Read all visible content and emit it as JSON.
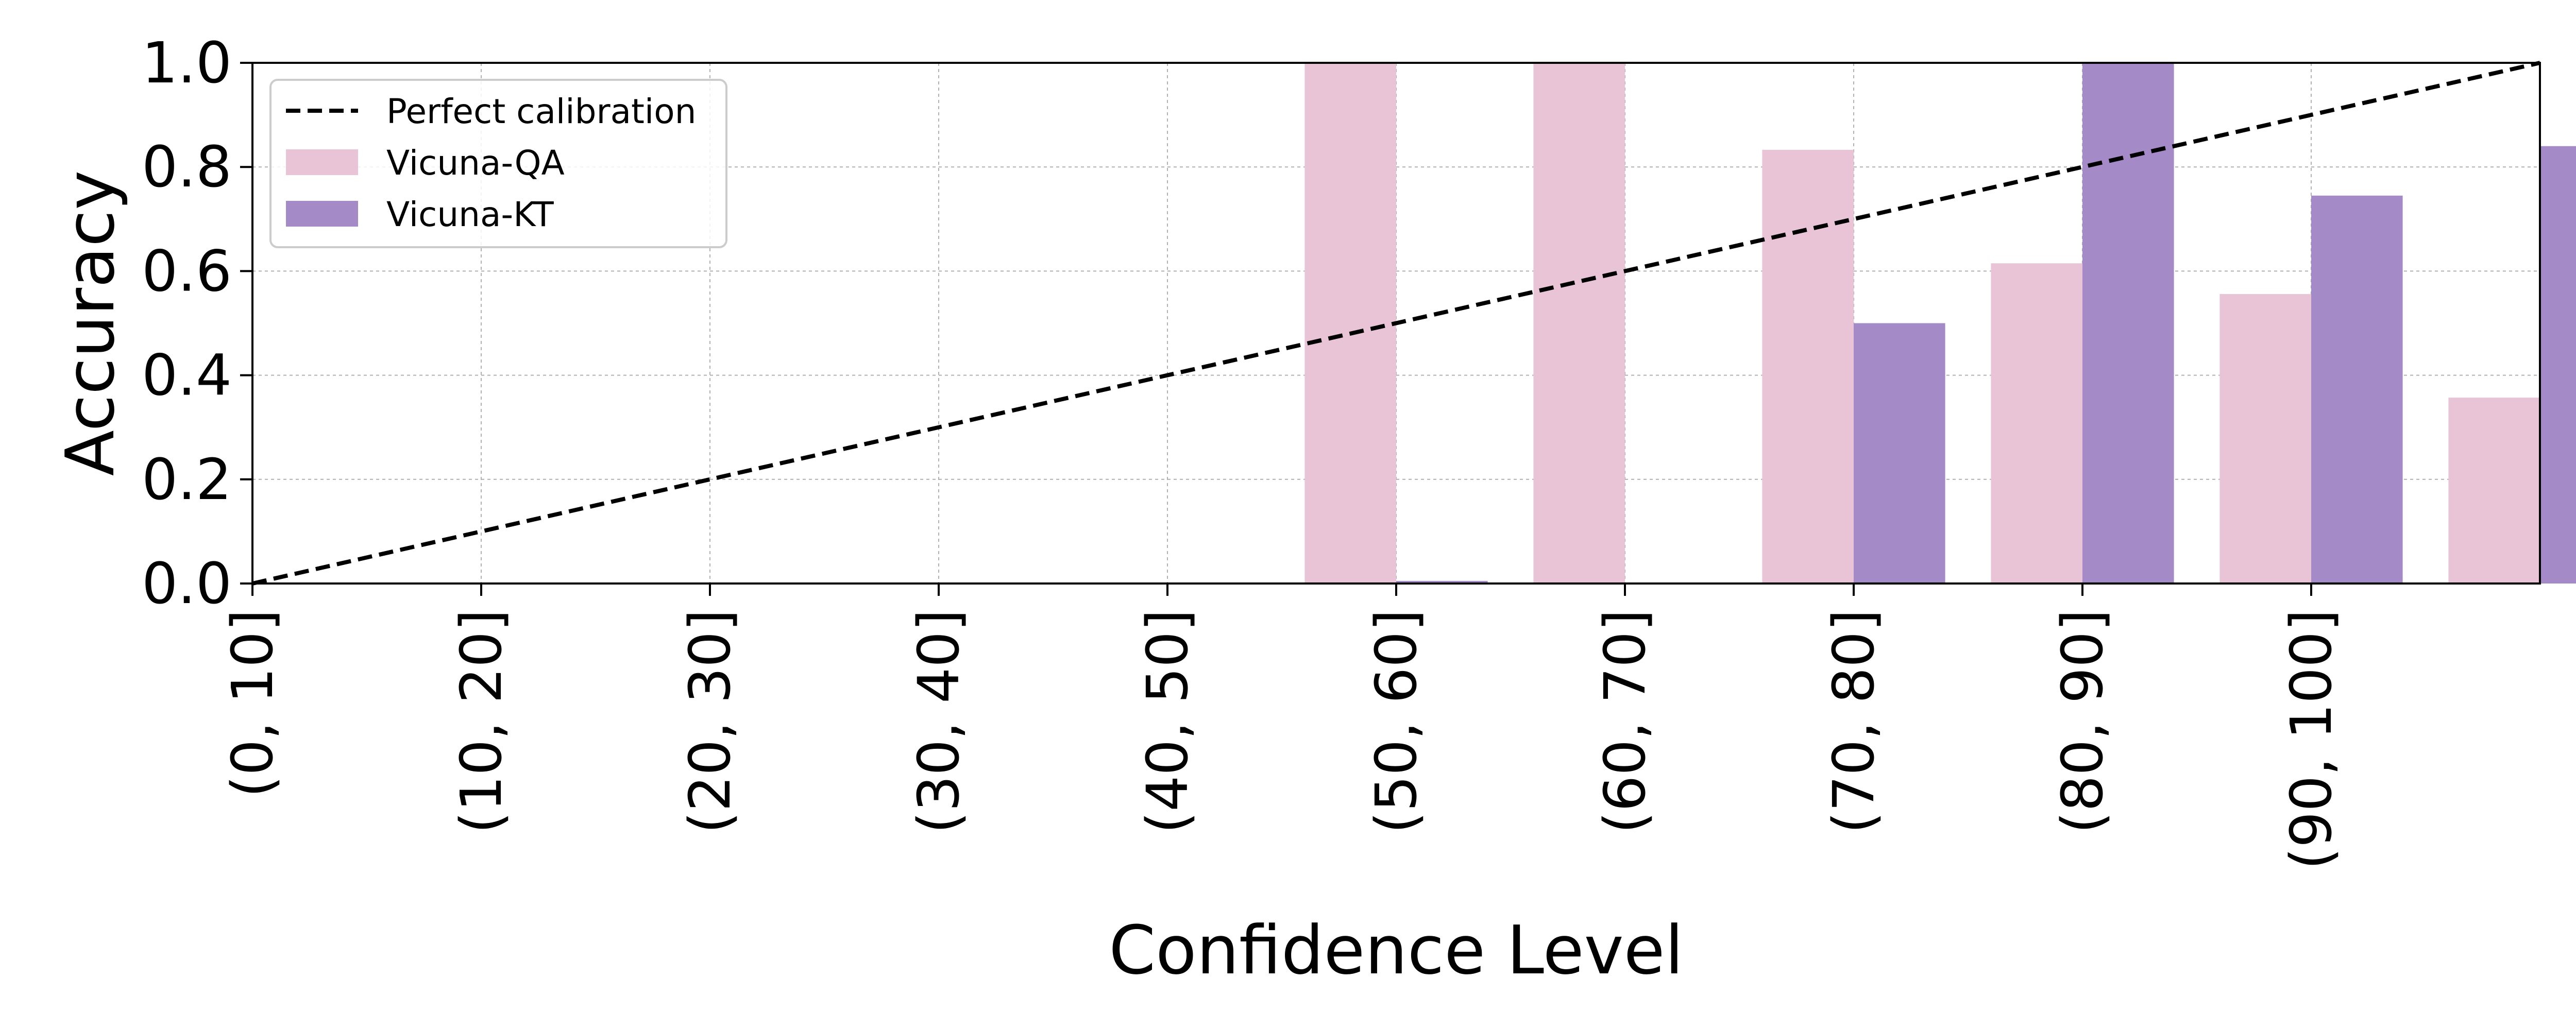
{
  "chart_data": {
    "type": "bar",
    "title": "",
    "xlabel": "Confidence Level",
    "ylabel": "Accuracy",
    "categories": [
      "(0, 10]",
      "(10, 20]",
      "(20, 30]",
      "(30, 40]",
      "(40, 50]",
      "(50, 60]",
      "(60, 70]",
      "(70, 80]",
      "(80, 90]",
      "(90, 100]"
    ],
    "ylim": [
      0,
      1.0
    ],
    "yticks": [
      "0.0",
      "0.2",
      "0.4",
      "0.6",
      "0.8",
      "1.0"
    ],
    "grid": true,
    "legend_position": "upper-left",
    "reference_line": {
      "name": "Perfect calibration",
      "style": "dashed",
      "color": "#000000",
      "from": [
        0,
        0
      ],
      "to": [
        100,
        1.0
      ]
    },
    "series": [
      {
        "name": "Vicuna-QA",
        "color": "#e8c4d6",
        "values": [
          0,
          0,
          0,
          0,
          1.0,
          1.0,
          0.833,
          0.615,
          0.556,
          0.357
        ]
      },
      {
        "name": "Vicuna-KT",
        "color": "#a48ac6",
        "values": [
          0,
          0,
          0,
          0,
          0.005,
          0,
          0.5,
          1.0,
          0.745,
          0.84
        ]
      }
    ]
  }
}
